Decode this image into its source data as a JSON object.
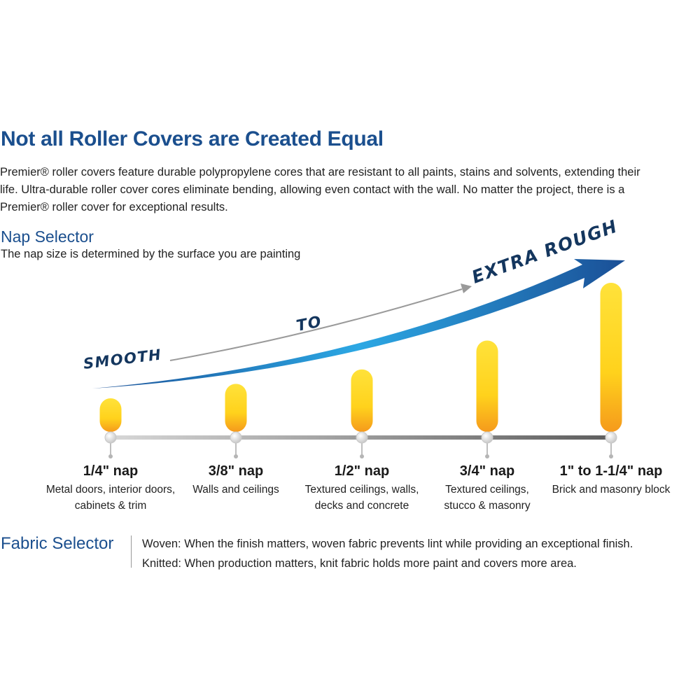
{
  "header": {
    "title": "Not all Roller Covers are Created Equal",
    "intro_lines": [
      "Premier® roller covers feature durable polypropylene cores that are resistant to all paints, stains and solvents, extending their",
      "life. Ultra-durable roller cover cores eliminate bending, allowing even contact with the wall. No matter the project, there is a",
      "Premier® roller cover for exceptional results."
    ]
  },
  "nap_selector": {
    "heading": "Nap Selector",
    "subheading": "The nap size is determined by the surface you are painting",
    "arrow_words": {
      "start": "SMOOTH",
      "middle": "TO",
      "end": "EXTRA ROUGH"
    },
    "items": [
      {
        "label": "1/4\" nap",
        "desc_lines": [
          "Metal doors, interior doors,",
          "cabinets & trim"
        ],
        "nap_inches": 0.25
      },
      {
        "label": "3/8\" nap",
        "desc_lines": [
          "Walls and ceilings"
        ],
        "nap_inches": 0.375
      },
      {
        "label": "1/2\" nap",
        "desc_lines": [
          "Textured ceilings, walls,",
          "decks and concrete"
        ],
        "nap_inches": 0.5
      },
      {
        "label": "3/4\" nap",
        "desc_lines": [
          "Textured ceilings,",
          "stucco & masonry"
        ],
        "nap_inches": 0.75
      },
      {
        "label": "1\" to 1-1/4\" nap",
        "desc_lines": [
          "Brick and masonry block"
        ],
        "nap_inches": 1.25
      }
    ]
  },
  "fabric_selector": {
    "heading": "Fabric Selector",
    "lines": [
      "Woven:  When the finish matters, woven fabric prevents lint while providing an exceptional finish.",
      "Knitted: When production matters, knit fabric holds more paint and covers more area."
    ]
  },
  "colors": {
    "brand_blue": "#1b4f8e",
    "arrow_dark": "#1a4f96",
    "arrow_light": "#2ca8e4",
    "bar_yellow": "#ffe23a",
    "bar_orange": "#f59a1c",
    "text_navy": "#14365e"
  }
}
